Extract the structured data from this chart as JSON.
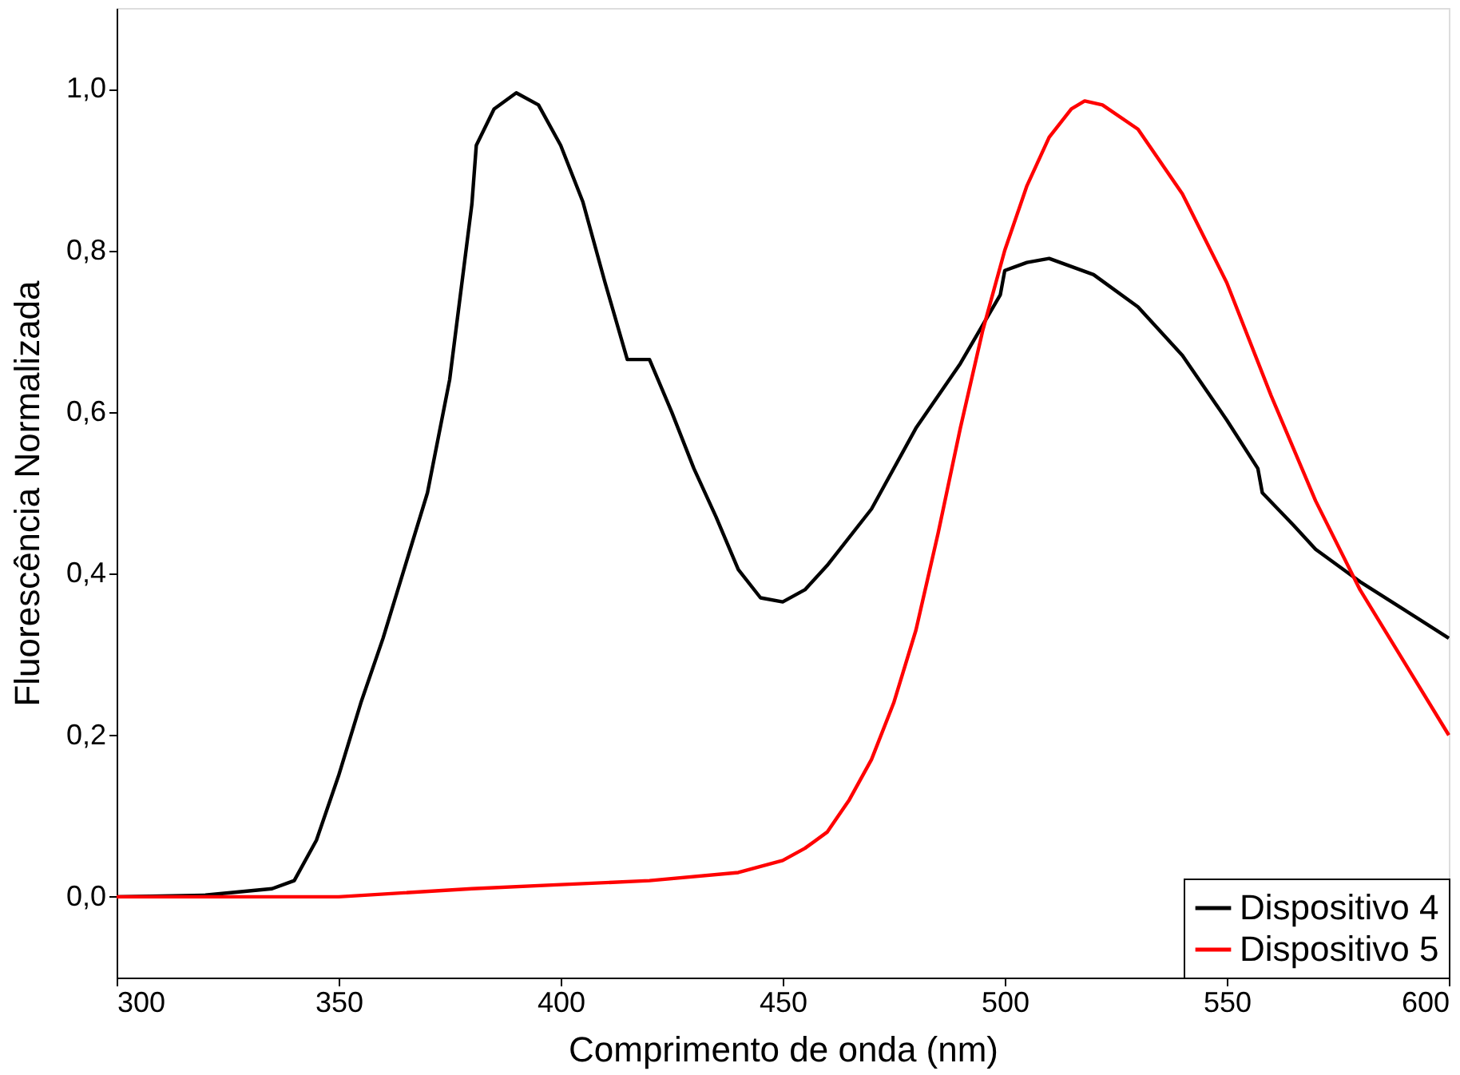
{
  "chart_data": {
    "type": "line",
    "xlabel": "Comprimento de onda (nm)",
    "ylabel": "Fluorescência Normalizada",
    "xlim": [
      300,
      600
    ],
    "ylim": [
      -0.1,
      1.1
    ],
    "xticks": [
      300,
      350,
      400,
      450,
      500,
      550,
      600
    ],
    "yticks": [
      {
        "value": 0,
        "label": "0,0"
      },
      {
        "value": 0.2,
        "label": "0,2"
      },
      {
        "value": 0.4,
        "label": "0,4"
      },
      {
        "value": 0.6,
        "label": "0,6"
      },
      {
        "value": 0.8,
        "label": "0,8"
      },
      {
        "value": 1.0,
        "label": "1,0"
      }
    ],
    "grid": false,
    "legend": "bottom right",
    "marker": "none",
    "line_style": "solid",
    "series": [
      {
        "name": "Dispositivo 4",
        "color": "#000000",
        "x": [
          300,
          320,
          335,
          340,
          345,
          350,
          355,
          360,
          365,
          370,
          375,
          380,
          381,
          385,
          390,
          395,
          400,
          405,
          410,
          415,
          420,
          425,
          430,
          435,
          440,
          445,
          450,
          455,
          460,
          470,
          480,
          490,
          499,
          500,
          505,
          510,
          520,
          530,
          540,
          550,
          557,
          558,
          565,
          570,
          580,
          590,
          600
        ],
        "values": [
          0.0,
          0.002,
          0.01,
          0.02,
          0.07,
          0.15,
          0.24,
          0.32,
          0.41,
          0.5,
          0.64,
          0.857,
          0.93,
          0.975,
          0.995,
          0.98,
          0.93,
          0.86,
          0.76,
          0.665,
          0.665,
          0.6,
          0.53,
          0.47,
          0.405,
          0.37,
          0.365,
          0.38,
          0.41,
          0.48,
          0.58,
          0.66,
          0.745,
          0.775,
          0.785,
          0.79,
          0.77,
          0.73,
          0.67,
          0.59,
          0.53,
          0.5,
          0.46,
          0.43,
          0.39,
          0.355,
          0.32
        ]
      },
      {
        "name": "Dispositivo 5",
        "color": "#ff0000",
        "x": [
          300,
          350,
          380,
          400,
          420,
          440,
          450,
          455,
          460,
          465,
          470,
          475,
          480,
          485,
          490,
          495,
          500,
          505,
          510,
          515,
          518,
          522,
          530,
          540,
          550,
          560,
          570,
          580,
          590,
          600
        ],
        "values": [
          0.0,
          0.0,
          0.01,
          0.015,
          0.02,
          0.03,
          0.045,
          0.06,
          0.08,
          0.12,
          0.17,
          0.24,
          0.33,
          0.45,
          0.58,
          0.7,
          0.8,
          0.88,
          0.94,
          0.975,
          0.985,
          0.98,
          0.95,
          0.87,
          0.76,
          0.62,
          0.49,
          0.38,
          0.29,
          0.2
        ]
      }
    ]
  }
}
